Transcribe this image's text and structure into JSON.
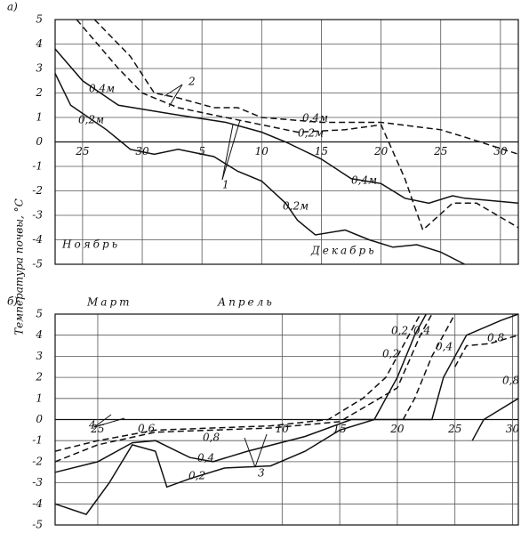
{
  "ylabel": "Температура почвы, °C",
  "chart_data": [
    {
      "type": "line",
      "title": "а)",
      "xlim": [
        22.7,
        61.5
      ],
      "ylim": [
        -5,
        5
      ],
      "xticks": [
        {
          "value": 25,
          "label": "25"
        },
        {
          "value": 30,
          "label": "30"
        },
        {
          "value": 35,
          "label": "5"
        },
        {
          "value": 40,
          "label": "10"
        },
        {
          "value": 45,
          "label": "15"
        },
        {
          "value": 50,
          "label": "20"
        },
        {
          "value": 55,
          "label": "25"
        },
        {
          "value": 60,
          "label": "30"
        }
      ],
      "yticks": [
        5,
        4,
        3,
        2,
        1,
        0,
        -1,
        -2,
        -3,
        -4,
        -5
      ],
      "grid": true,
      "series": [
        {
          "color": "#111",
          "dashed": false,
          "x": [
            22.7,
            24,
            27,
            29,
            31,
            33,
            36,
            38,
            40,
            42,
            43,
            44.5,
            47,
            49,
            51,
            53,
            55,
            57
          ],
          "values": [
            2.8,
            1.5,
            0.5,
            -0.3,
            -0.5,
            -0.3,
            -0.6,
            -1.2,
            -1.6,
            -2.5,
            -3.2,
            -3.8,
            -3.6,
            -4,
            -4.3,
            -4.2,
            -4.5,
            -5
          ]
        },
        {
          "color": "#111",
          "dashed": false,
          "x": [
            22.7,
            25,
            28,
            33,
            37,
            40,
            42,
            45,
            47.5,
            50,
            52,
            54,
            56,
            57,
            61.5
          ],
          "values": [
            3.8,
            2.5,
            1.5,
            1.1,
            0.8,
            0.4,
            0,
            -0.7,
            -1.5,
            -1.7,
            -2.3,
            -2.5,
            -2.2,
            -2.3,
            -2.5
          ]
        },
        {
          "color": "#111",
          "dashed": true,
          "x": [
            26,
            29,
            31,
            33,
            36,
            38,
            40,
            45,
            50,
            55,
            57,
            61.5
          ],
          "values": [
            5,
            3.5,
            2,
            1.8,
            1.4,
            1.4,
            1,
            0.8,
            0.8,
            0.5,
            0.2,
            -0.5
          ]
        },
        {
          "color": "#111",
          "dashed": true,
          "x": [
            24.5,
            28,
            30,
            33,
            36,
            40,
            43,
            47,
            50,
            52,
            53.5,
            56,
            58,
            61.5
          ],
          "values": [
            5,
            3,
            2,
            1.4,
            1.1,
            0.7,
            0.4,
            0.5,
            0.7,
            -1.5,
            -3.6,
            -2.5,
            -2.5,
            -3.5
          ]
        }
      ],
      "annotations": [
        "0,4м",
        "0,2м",
        "0,4м",
        "0,2м",
        "0,4м",
        "0,2м",
        "1",
        "2",
        "Ноябрь",
        "Декабрь"
      ]
    },
    {
      "type": "line",
      "title": "б)",
      "xlim": [
        21.3,
        61.5
      ],
      "ylim": [
        -5,
        5
      ],
      "xticks": [
        {
          "value": 25,
          "label": "25"
        },
        {
          "value": 41,
          "label": "10"
        },
        {
          "value": 46,
          "label": "15"
        },
        {
          "value": 51,
          "label": "20"
        },
        {
          "value": 56,
          "label": "25"
        },
        {
          "value": 61,
          "label": "30"
        }
      ],
      "yticks": [
        5,
        4,
        3,
        2,
        1,
        0,
        -1,
        -2,
        -3,
        -4,
        -5
      ],
      "grid": true,
      "series": [
        {
          "color": "#111",
          "dashed": true,
          "x": [
            21.3,
            25,
            30,
            40,
            45,
            48,
            50,
            52,
            53
          ],
          "values": [
            -1.5,
            -1,
            -0.5,
            -0.3,
            0,
            1,
            2,
            4,
            5
          ]
        },
        {
          "color": "#111",
          "dashed": true,
          "x": [
            21.3,
            25,
            30,
            40,
            46,
            51,
            53,
            54
          ],
          "values": [
            -2,
            -1.2,
            -0.6,
            -0.4,
            -0.1,
            1.5,
            4,
            5
          ]
        },
        {
          "color": "#111",
          "dashed": false,
          "x": [
            21.3,
            24,
            26,
            28,
            30,
            31,
            33,
            36,
            40,
            43,
            46,
            49,
            51,
            52.5,
            53.5
          ],
          "values": [
            -4,
            -4.5,
            -3,
            -1.2,
            -1.5,
            -3.2,
            -2.8,
            -2.3,
            -2.2,
            -1.5,
            -0.5,
            0,
            2,
            4,
            5
          ]
        },
        {
          "color": "#111",
          "dashed": false,
          "x": [
            21.3,
            25,
            28,
            30,
            33,
            35,
            38,
            43,
            47,
            51,
            54,
            55,
            57,
            60,
            61.5
          ],
          "values": [
            -2.5,
            -2,
            -1.1,
            -1,
            -1.8,
            -2,
            -1.5,
            -0.8,
            0,
            0,
            0,
            2,
            4,
            4.7,
            5
          ]
        },
        {
          "color": "#111",
          "dashed": true,
          "x": [
            51.5,
            52.5,
            54,
            56
          ],
          "values": [
            0,
            1,
            3,
            5
          ]
        },
        {
          "color": "#111",
          "dashed": true,
          "x": [
            56,
            57,
            59,
            61.5
          ],
          "values": [
            2.5,
            3.5,
            3.6,
            4
          ]
        },
        {
          "color": "#111",
          "dashed": false,
          "x": [
            57.5,
            58.5,
            60,
            61.5
          ],
          "values": [
            -1,
            0,
            0.5,
            1
          ]
        }
      ],
      "annotations": [
        "Март",
        "Апрель",
        "0,2",
        "0,4",
        "0,2",
        "0,4",
        "0,8",
        "0,8",
        "0,6",
        "0,8",
        "0,4",
        "0,2",
        "3",
        "4"
      ]
    }
  ]
}
